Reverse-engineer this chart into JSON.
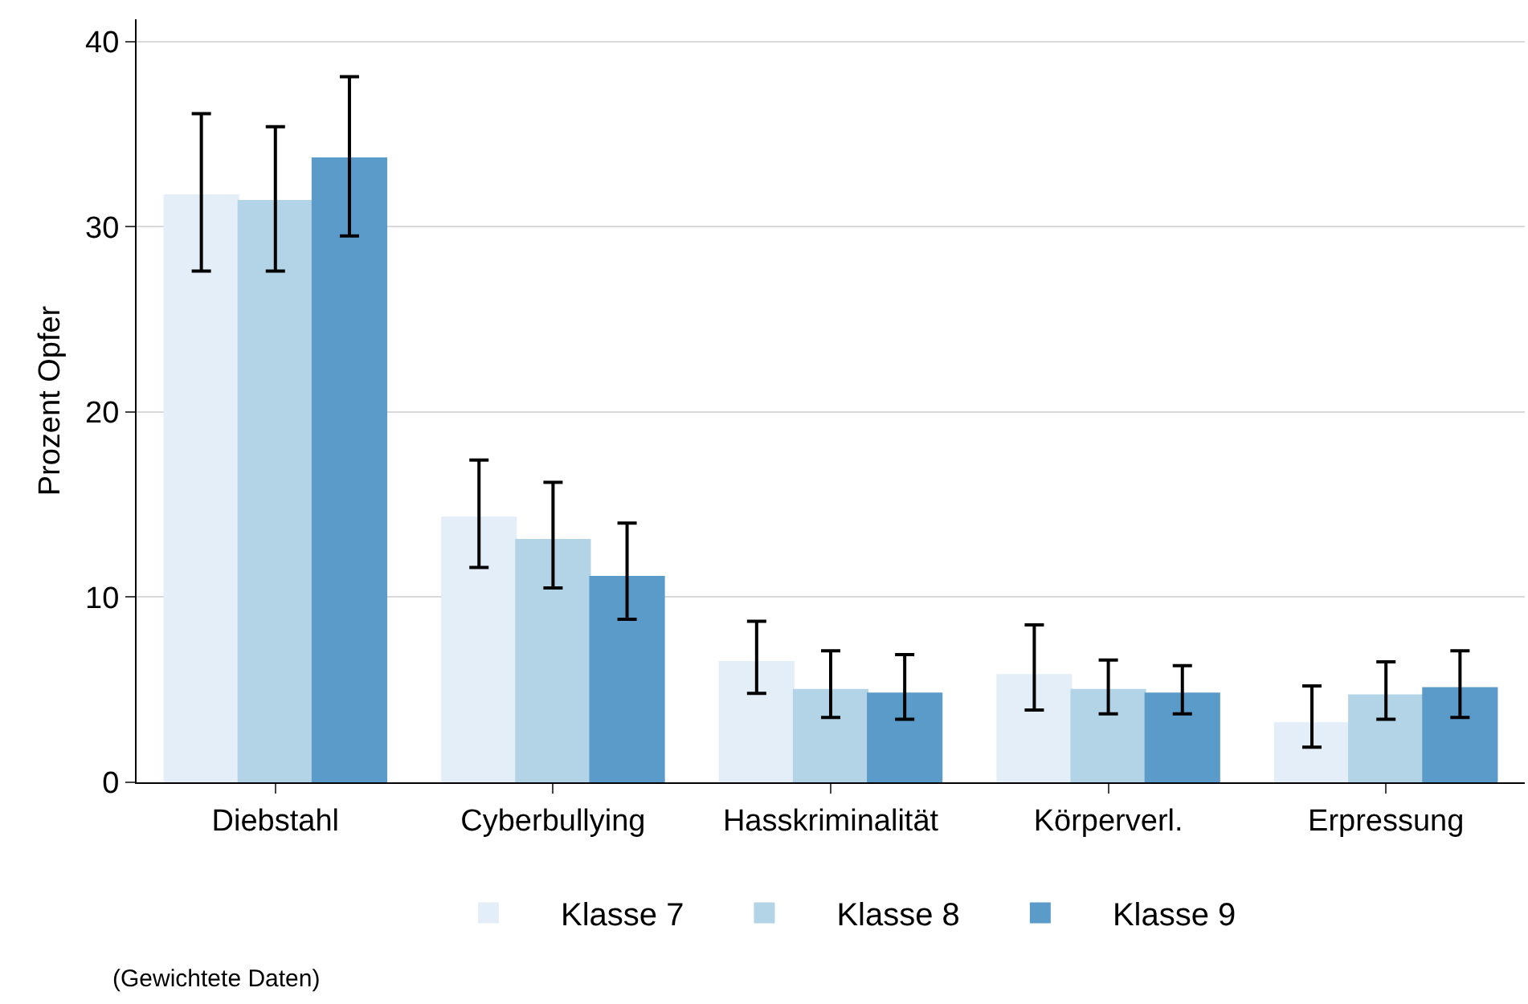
{
  "chart_data": {
    "type": "bar",
    "ylabel": "Prozent Opfer",
    "categories": [
      "Diebstahl",
      "Cyberbullying",
      "Hasskriminalität",
      "Körperverl.",
      "Erpressung"
    ],
    "series": [
      {
        "name": "Klasse 7",
        "color": "#e3eef8",
        "values": [
          31.7,
          14.3,
          6.5,
          5.8,
          3.2
        ],
        "errors": [
          [
            27.6,
            36.1
          ],
          [
            11.6,
            17.4
          ],
          [
            4.8,
            8.7
          ],
          [
            3.9,
            8.5
          ],
          [
            1.9,
            5.2
          ]
        ]
      },
      {
        "name": "Klasse 8",
        "color": "#b2d4e6",
        "values": [
          31.4,
          13.1,
          5.0,
          5.0,
          4.7
        ],
        "errors": [
          [
            27.6,
            35.4
          ],
          [
            10.5,
            16.2
          ],
          [
            3.5,
            7.1
          ],
          [
            3.7,
            6.6
          ],
          [
            3.4,
            6.5
          ]
        ]
      },
      {
        "name": "Klasse 9",
        "color": "#5b9bc9",
        "values": [
          33.7,
          11.1,
          4.8,
          4.8,
          5.1
        ],
        "errors": [
          [
            29.5,
            38.1
          ],
          [
            8.8,
            14.0
          ],
          [
            3.4,
            6.9
          ],
          [
            3.7,
            6.3
          ],
          [
            3.5,
            7.1
          ]
        ]
      }
    ],
    "ylim": [
      0,
      41.2
    ],
    "yticks": [
      0,
      10,
      20,
      30,
      40
    ],
    "grid": "y",
    "legend": "bottom",
    "annotations": [
      "(Gewichtete Daten)"
    ]
  }
}
